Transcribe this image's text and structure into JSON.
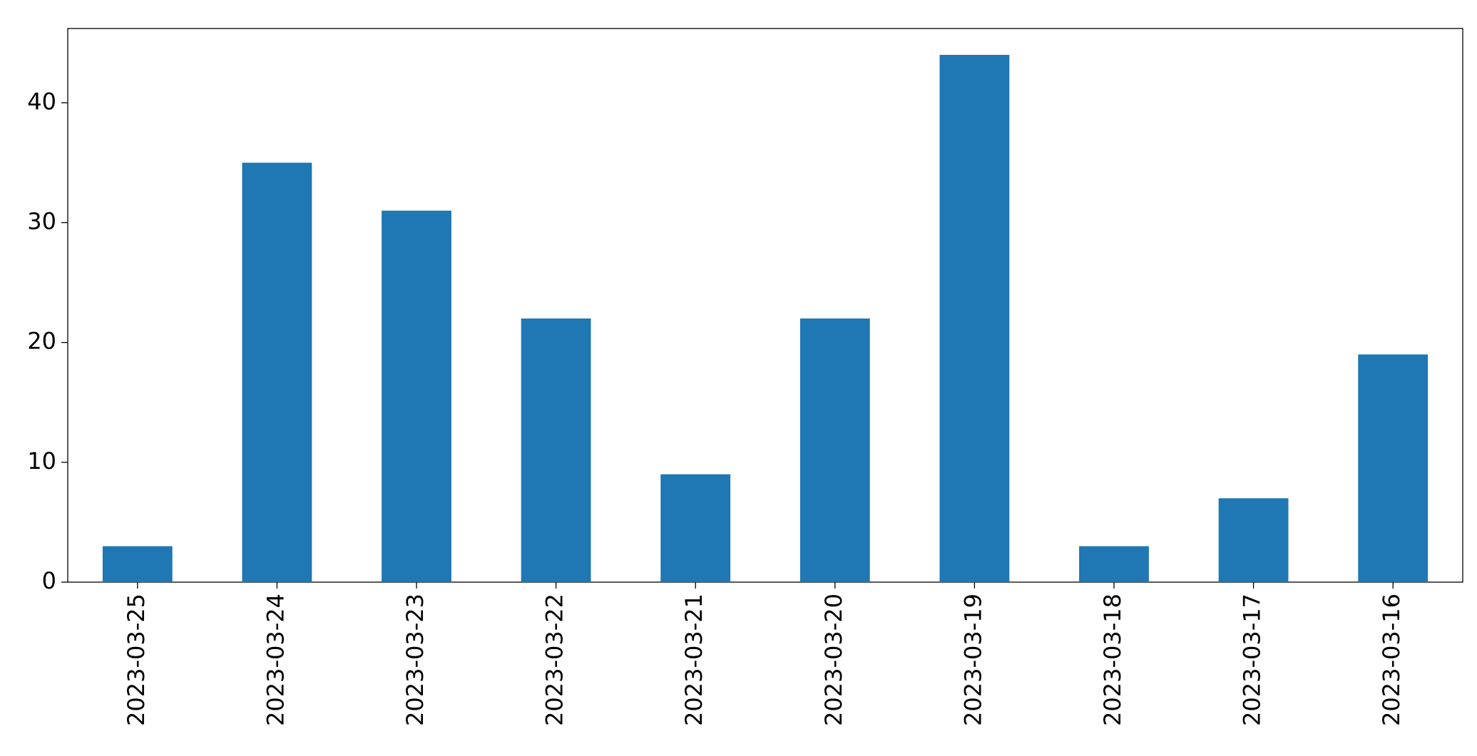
{
  "chart_data": {
    "type": "bar",
    "categories": [
      "2023-03-25",
      "2023-03-24",
      "2023-03-23",
      "2023-03-22",
      "2023-03-21",
      "2023-03-20",
      "2023-03-19",
      "2023-03-18",
      "2023-03-17",
      "2023-03-16"
    ],
    "values": [
      3,
      35,
      31,
      22,
      9,
      22,
      44,
      3,
      7,
      19
    ],
    "color": "#1f77b4",
    "ylim": [
      0,
      46.2
    ],
    "yticks": [
      0,
      10,
      20,
      30,
      40
    ],
    "grid": false
  }
}
